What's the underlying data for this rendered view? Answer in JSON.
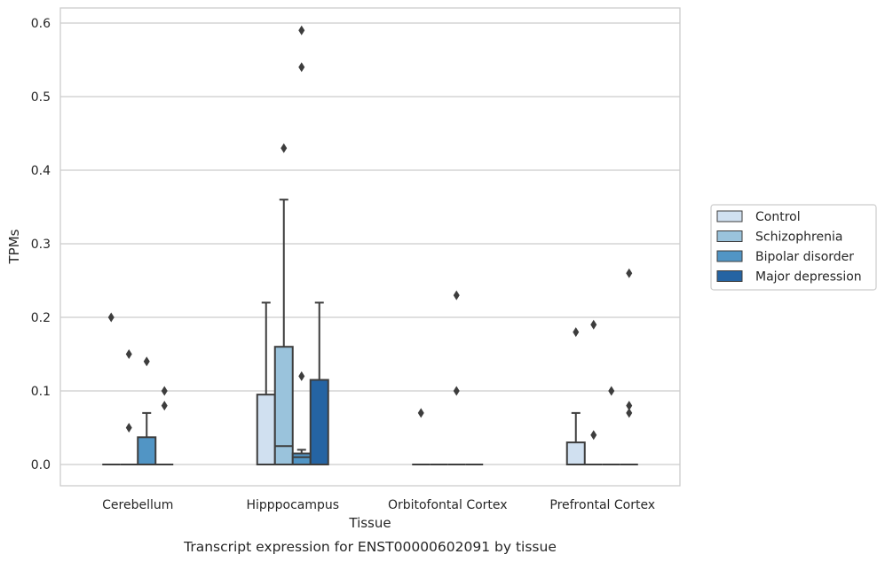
{
  "chart_data": {
    "type": "box",
    "caption": "Transcript expression for ENST00000602091 by tissue",
    "xlabel": "Tissue",
    "ylabel": "TPMs",
    "ylim": [
      -0.028,
      0.62
    ],
    "yticks": [
      "0.0",
      "0.1",
      "0.2",
      "0.3",
      "0.4",
      "0.5",
      "0.6"
    ],
    "grid": "horizontal",
    "legend_position": "right",
    "categories": [
      "Cerebellum",
      "Hipppocampus",
      "Orbitofontal Cortex",
      "Prefrontal Cortex"
    ],
    "series": [
      {
        "name": "Control",
        "color": "#d0e0f0",
        "boxes": [
          {
            "q1": 0,
            "median": 0,
            "q3": 0,
            "whisker_low": 0,
            "whisker_high": 0,
            "outliers": [
              0.2
            ]
          },
          {
            "q1": 0,
            "median": 0,
            "q3": 0.095,
            "whisker_low": 0,
            "whisker_high": 0.22,
            "outliers": []
          },
          {
            "q1": 0,
            "median": 0,
            "q3": 0,
            "whisker_low": 0,
            "whisker_high": 0,
            "outliers": [
              0.07
            ]
          },
          {
            "q1": 0,
            "median": 0,
            "q3": 0.03,
            "whisker_low": 0,
            "whisker_high": 0.07,
            "outliers": [
              0.18
            ]
          }
        ]
      },
      {
        "name": "Schizophrenia",
        "color": "#9ac3dc",
        "boxes": [
          {
            "q1": 0,
            "median": 0,
            "q3": 0,
            "whisker_low": 0,
            "whisker_high": 0,
            "outliers": [
              0.15,
              0.05
            ]
          },
          {
            "q1": 0,
            "median": 0.025,
            "q3": 0.16,
            "whisker_low": 0,
            "whisker_high": 0.36,
            "outliers": [
              0.43
            ]
          },
          {
            "q1": 0,
            "median": 0,
            "q3": 0,
            "whisker_low": 0,
            "whisker_high": 0,
            "outliers": []
          },
          {
            "q1": 0,
            "median": 0,
            "q3": 0,
            "whisker_low": 0,
            "whisker_high": 0,
            "outliers": [
              0.19,
              0.04
            ]
          }
        ]
      },
      {
        "name": "Bipolar disorder",
        "color": "#5195c5",
        "boxes": [
          {
            "q1": 0,
            "median": 0,
            "q3": 0.037,
            "whisker_low": 0,
            "whisker_high": 0.07,
            "outliers": [
              0.14
            ]
          },
          {
            "q1": 0,
            "median": 0.01,
            "q3": 0.015,
            "whisker_low": 0,
            "whisker_high": 0.02,
            "outliers": [
              0.59,
              0.54,
              0.12
            ]
          },
          {
            "q1": 0,
            "median": 0,
            "q3": 0,
            "whisker_low": 0,
            "whisker_high": 0,
            "outliers": [
              0.23,
              0.1
            ]
          },
          {
            "q1": 0,
            "median": 0,
            "q3": 0,
            "whisker_low": 0,
            "whisker_high": 0,
            "outliers": [
              0.1
            ]
          }
        ]
      },
      {
        "name": "Major depression",
        "color": "#2564a3",
        "boxes": [
          {
            "q1": 0,
            "median": 0,
            "q3": 0,
            "whisker_low": 0,
            "whisker_high": 0,
            "outliers": [
              0.1,
              0.08
            ]
          },
          {
            "q1": 0,
            "median": 0,
            "q3": 0.115,
            "whisker_low": 0,
            "whisker_high": 0.22,
            "outliers": []
          },
          {
            "q1": 0,
            "median": 0,
            "q3": 0,
            "whisker_low": 0,
            "whisker_high": 0,
            "outliers": []
          },
          {
            "q1": 0,
            "median": 0,
            "q3": 0,
            "whisker_low": 0,
            "whisker_high": 0,
            "outliers": [
              0.26,
              0.08,
              0.07
            ]
          }
        ]
      }
    ]
  }
}
